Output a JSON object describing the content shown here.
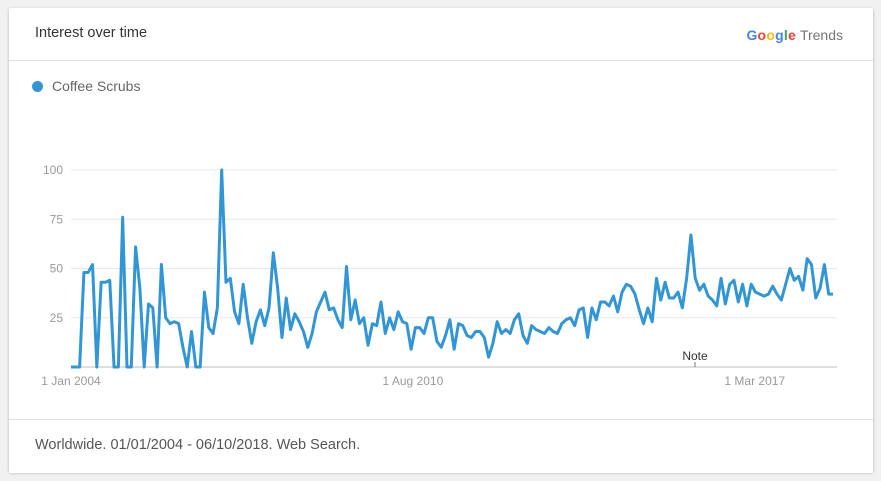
{
  "header": {
    "title": "Interest over time",
    "brand_google": "Google",
    "brand_trends": "Trends",
    "brand_colors": [
      "#4285f4",
      "#ea4335",
      "#fbbc05",
      "#4285f4",
      "#34a853",
      "#ea4335"
    ]
  },
  "footer": {
    "text": "Worldwide. 01/01/2004 - 06/10/2018. Web Search."
  },
  "note_label": "Note",
  "chart_data": {
    "type": "line",
    "title": "",
    "xlabel": "",
    "ylabel": "",
    "ylim": [
      0,
      100
    ],
    "y_ticks": [
      25,
      50,
      75,
      100
    ],
    "x_ticks": [
      "1 Jan 2004",
      "1 Aug 2010",
      "1 Mar 2017"
    ],
    "x_range": [
      "2004-01",
      "2018-10"
    ],
    "grid": true,
    "legend": "top-left",
    "series": [
      {
        "name": "Coffee Scrubs",
        "color": "#3296d6",
        "values": [
          0,
          0,
          0,
          48,
          48,
          52,
          0,
          43,
          43,
          44,
          0,
          0,
          76,
          0,
          0,
          61,
          40,
          0,
          32,
          30,
          0,
          52,
          25,
          22,
          23,
          22,
          10,
          0,
          18,
          0,
          0,
          38,
          20,
          17,
          30,
          100,
          43,
          45,
          28,
          22,
          42,
          25,
          12,
          23,
          29,
          21,
          30,
          58,
          40,
          15,
          35,
          19,
          27,
          23,
          18,
          10,
          17,
          28,
          33,
          38,
          29,
          30,
          24,
          20,
          51,
          24,
          34,
          22,
          25,
          11,
          22,
          21,
          33,
          17,
          25,
          19,
          28,
          23,
          22,
          9,
          20,
          20,
          17,
          25,
          25,
          13,
          10,
          16,
          24,
          9,
          22,
          21,
          16,
          15,
          18,
          18,
          15,
          5,
          12,
          23,
          17,
          19,
          17,
          24,
          27,
          16,
          12,
          21,
          19,
          18,
          17,
          20,
          18,
          17,
          22,
          24,
          25,
          21,
          29,
          30,
          15,
          30,
          24,
          33,
          33,
          31,
          36,
          28,
          38,
          42,
          41,
          37,
          29,
          22,
          30,
          23,
          45,
          34,
          43,
          35,
          35,
          38,
          30,
          45,
          67,
          45,
          39,
          42,
          36,
          34,
          31,
          45,
          32,
          42,
          44,
          33,
          42,
          31,
          42,
          38,
          37,
          36,
          37,
          41,
          37,
          34,
          42,
          50,
          44,
          46,
          39,
          55,
          52,
          35,
          40,
          52,
          37,
          37
        ]
      }
    ]
  }
}
